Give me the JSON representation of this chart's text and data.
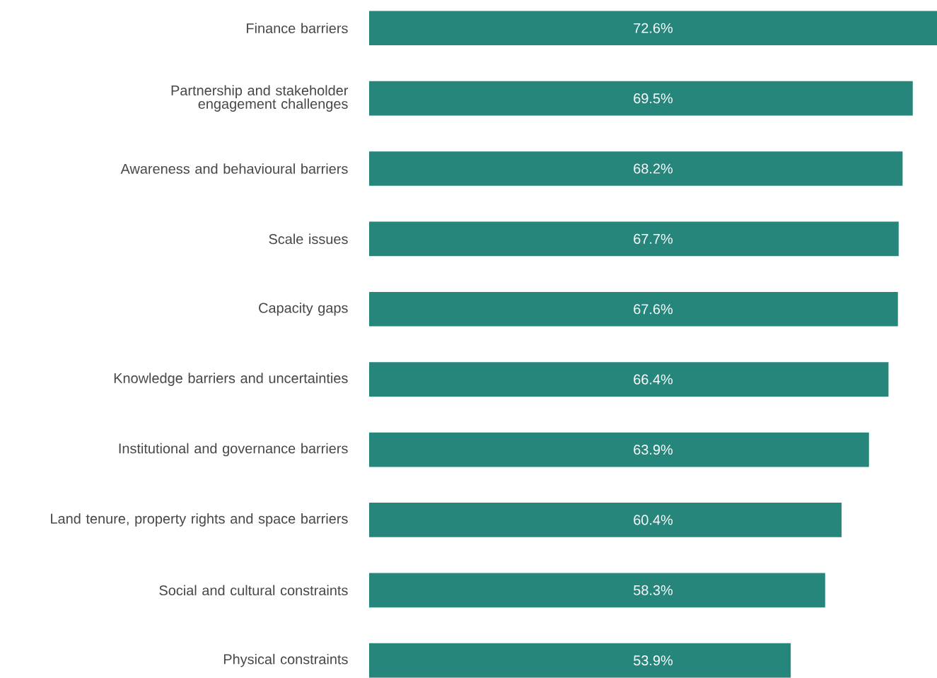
{
  "chart_data": {
    "type": "bar",
    "orientation": "horizontal",
    "categories": [
      "Finance barriers",
      "Partnership and stakeholder engagement challenges",
      "Awareness and behavioural barriers",
      "Scale issues",
      "Capacity gaps",
      "Knowledge barriers and uncertainties",
      "Institutional and governance barriers",
      "Land tenure, property rights and space barriers",
      "Social and cultural constraints",
      "Physical constraints"
    ],
    "values": [
      72.6,
      69.5,
      68.2,
      67.7,
      67.6,
      66.4,
      63.9,
      60.4,
      58.3,
      53.9
    ],
    "value_labels": [
      "72.6%",
      "69.5%",
      "68.2%",
      "67.7%",
      "67.6%",
      "66.4%",
      "63.9%",
      "60.4%",
      "58.3%",
      "53.9%"
    ],
    "color": "#26867c"
  }
}
